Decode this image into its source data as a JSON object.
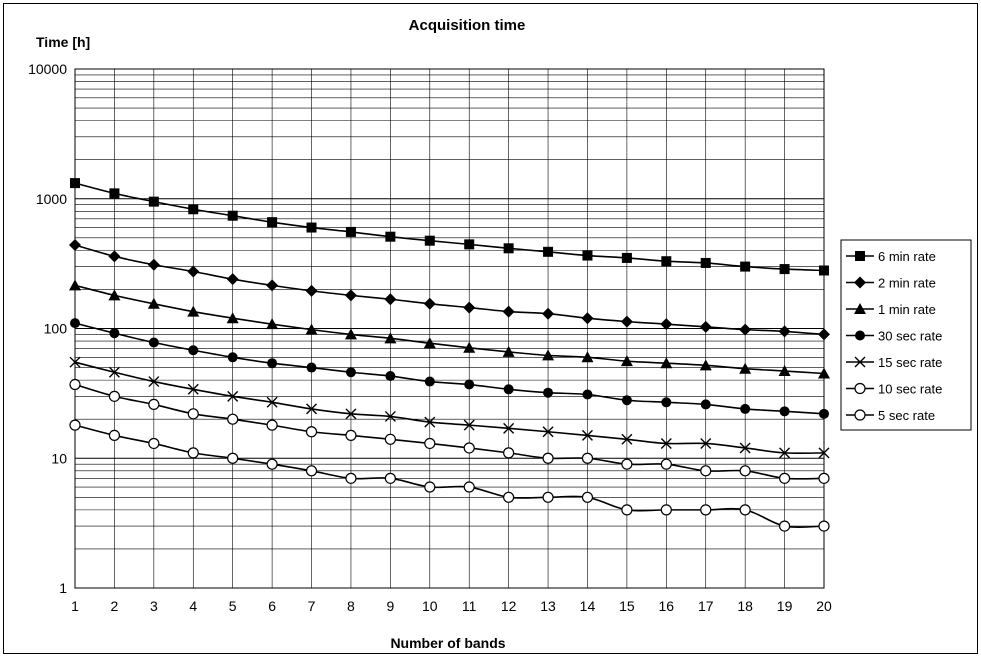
{
  "chart_data": {
    "type": "line",
    "title": "Acquisition time",
    "xlabel": "Number of bands",
    "ylabel": "Time [h]",
    "yscale": "log",
    "ylim": [
      1,
      10000
    ],
    "xlim": [
      1,
      20
    ],
    "y_ticks": [
      "1",
      "10",
      "100",
      "1000",
      "10000"
    ],
    "x_ticks": [
      "1",
      "2",
      "3",
      "4",
      "5",
      "6",
      "7",
      "8",
      "9",
      "10",
      "11",
      "12",
      "13",
      "14",
      "15",
      "16",
      "17",
      "18",
      "19",
      "20"
    ],
    "grid": true,
    "legend_position": "right",
    "x": [
      1,
      2,
      3,
      4,
      5,
      6,
      7,
      8,
      9,
      10,
      11,
      12,
      13,
      14,
      15,
      16,
      17,
      18,
      19,
      20
    ],
    "series": [
      {
        "name": "6 min rate",
        "marker": "square",
        "values": [
          1320,
          1100,
          950,
          830,
          740,
          660,
          600,
          555,
          510,
          475,
          445,
          415,
          390,
          365,
          350,
          330,
          320,
          300,
          287,
          280
        ]
      },
      {
        "name": "2 min rate",
        "marker": "diamond",
        "values": [
          440,
          360,
          310,
          275,
          240,
          215,
          195,
          180,
          168,
          155,
          145,
          135,
          130,
          120,
          113,
          108,
          103,
          98,
          95,
          90
        ]
      },
      {
        "name": "1 min rate",
        "marker": "triangle",
        "values": [
          215,
          180,
          155,
          135,
          120,
          108,
          98,
          90,
          84,
          77,
          71,
          66,
          62,
          60,
          56,
          54,
          52,
          49,
          47,
          45
        ]
      },
      {
        "name": "30 sec rate",
        "marker": "circle-filled",
        "values": [
          110,
          92,
          78,
          68,
          60,
          54,
          50,
          46,
          43,
          39,
          37,
          34,
          32,
          31,
          28,
          27,
          26,
          24,
          23,
          22
        ]
      },
      {
        "name": "15 sec rate",
        "marker": "x",
        "values": [
          55,
          46,
          39,
          34,
          30,
          27,
          24,
          22,
          21,
          19,
          18,
          17,
          16,
          15,
          14,
          13,
          13,
          12,
          11,
          11
        ]
      },
      {
        "name": "10 sec rate",
        "marker": "circle-open",
        "values": [
          37,
          30,
          26,
          22,
          20,
          18,
          16,
          15,
          14,
          13,
          12,
          11,
          10,
          10,
          9,
          9,
          8,
          8,
          7,
          7
        ]
      },
      {
        "name": "5 sec rate",
        "marker": "circle-open",
        "values": [
          18,
          15,
          13,
          11,
          10,
          9,
          8,
          7,
          7,
          6,
          6,
          5,
          5,
          5,
          4,
          4,
          4,
          4,
          3,
          3
        ]
      }
    ]
  }
}
